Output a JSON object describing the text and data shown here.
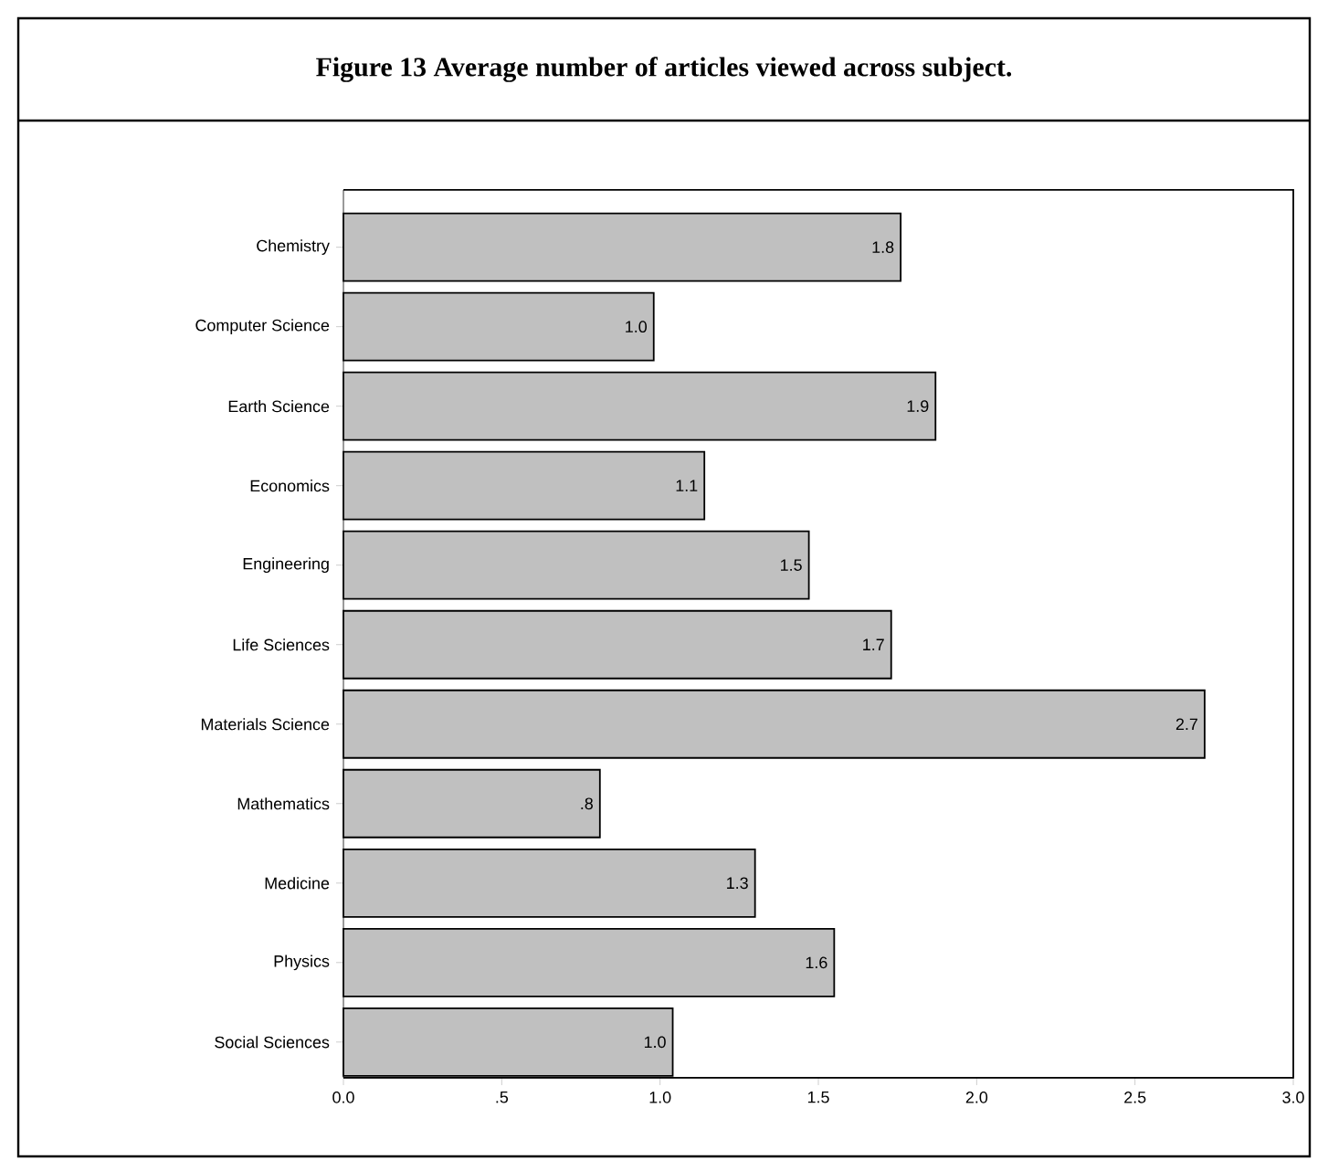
{
  "chart_data": {
    "type": "bar",
    "orientation": "horizontal",
    "title": "Figure 13 Average number of articles viewed across subject.",
    "categories": [
      "Chemistry",
      "Computer Science",
      "Earth Science",
      "Economics",
      "Engineering",
      "Life Sciences",
      "Materials Science",
      "Mathematics",
      "Medicine",
      "Physics",
      "Social Sciences"
    ],
    "values": [
      1.76,
      0.98,
      1.87,
      1.14,
      1.47,
      1.73,
      2.72,
      0.81,
      1.3,
      1.55,
      1.04
    ],
    "value_labels": [
      "1.8",
      "1.0",
      "1.9",
      "1.1",
      "1.5",
      "1.7",
      "2.7",
      ".8",
      "1.3",
      "1.6",
      "1.0"
    ],
    "color": "#c0c0c0",
    "xlim": [
      0,
      3
    ],
    "xticks": [
      {
        "value": 0,
        "label": "0.0"
      },
      {
        "value": 0.5,
        "label": ".5"
      },
      {
        "value": 1,
        "label": "1.0"
      },
      {
        "value": 1.5,
        "label": "1.5"
      },
      {
        "value": 2,
        "label": "2.0"
      },
      {
        "value": 2.5,
        "label": "2.5"
      },
      {
        "value": 3,
        "label": "3.0"
      }
    ]
  }
}
